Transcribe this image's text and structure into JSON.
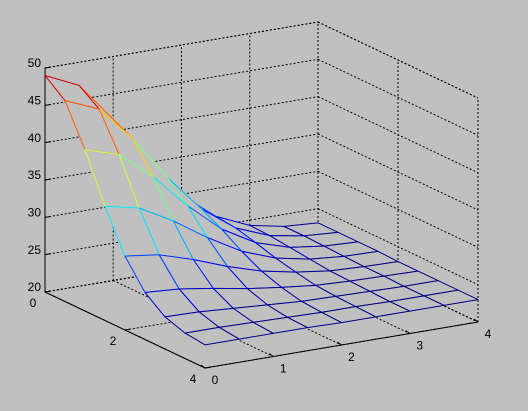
{
  "chart_data": {
    "type": "mesh",
    "x": [
      0,
      0.5,
      1,
      1.5,
      2,
      2.5,
      3,
      3.5,
      4
    ],
    "y": [
      0,
      0.5,
      1,
      1.5,
      2,
      2.5,
      3,
      3.5,
      4
    ],
    "z": [
      [
        49.0,
        46.9,
        41.6,
        35.3,
        29.9,
        26.3,
        24.3,
        23.4,
        23.1
      ],
      [
        46.9,
        45.0,
        40.2,
        34.3,
        29.3,
        26.0,
        24.2,
        23.4,
        23.1
      ],
      [
        41.6,
        40.2,
        36.4,
        31.8,
        27.9,
        25.3,
        23.9,
        23.3,
        23.1
      ],
      [
        35.3,
        34.3,
        31.8,
        28.8,
        26.2,
        24.5,
        23.6,
        23.2,
        23.1
      ],
      [
        29.9,
        29.3,
        27.9,
        26.2,
        24.8,
        23.9,
        23.3,
        23.1,
        23.0
      ],
      [
        26.3,
        26.0,
        25.3,
        24.5,
        23.9,
        23.4,
        23.2,
        23.1,
        23.0
      ],
      [
        24.3,
        24.2,
        23.9,
        23.6,
        23.3,
        23.2,
        23.1,
        23.0,
        23.0
      ],
      [
        23.4,
        23.4,
        23.3,
        23.2,
        23.1,
        23.1,
        23.0,
        23.0,
        23.0
      ],
      [
        23.1,
        23.1,
        23.1,
        23.1,
        23.0,
        23.0,
        23.0,
        23.0,
        23.0
      ]
    ],
    "xlim": [
      0,
      4
    ],
    "ylim": [
      0,
      4
    ],
    "zlim": [
      20,
      50
    ],
    "xticks": [
      0,
      1,
      2,
      3,
      4
    ],
    "yticks": [
      0,
      2,
      4
    ],
    "zticks": [
      20,
      25,
      30,
      35,
      40,
      45,
      50
    ],
    "grid": true,
    "colormap": "jet"
  }
}
